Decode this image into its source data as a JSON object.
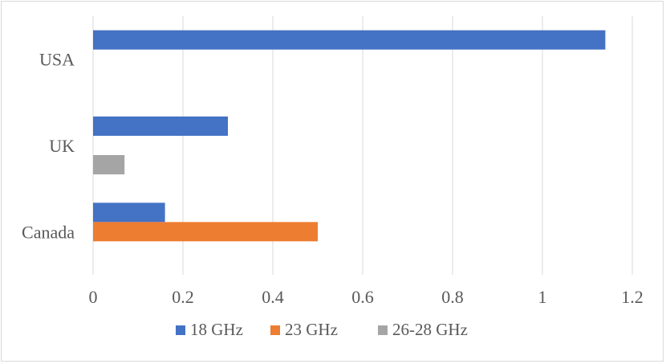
{
  "chart_data": {
    "type": "bar",
    "orientation": "horizontal",
    "categories": [
      "USA",
      "UK",
      "Canada"
    ],
    "series": [
      {
        "name": "18 GHz",
        "color": "#4472C4",
        "values": [
          1.14,
          0.3,
          0.16
        ]
      },
      {
        "name": "23 GHz",
        "color": "#ED7D31",
        "values": [
          0,
          0,
          0.5
        ]
      },
      {
        "name": "26-28 GHz",
        "color": "#A5A5A5",
        "values": [
          0,
          0.07,
          0
        ]
      }
    ],
    "xlim": [
      0,
      1.2
    ],
    "xticks": [
      "0",
      "0.2",
      "0.4",
      "0.6",
      "0.8",
      "1",
      "1.2"
    ],
    "grid": "vertical",
    "legend": "bottom"
  }
}
